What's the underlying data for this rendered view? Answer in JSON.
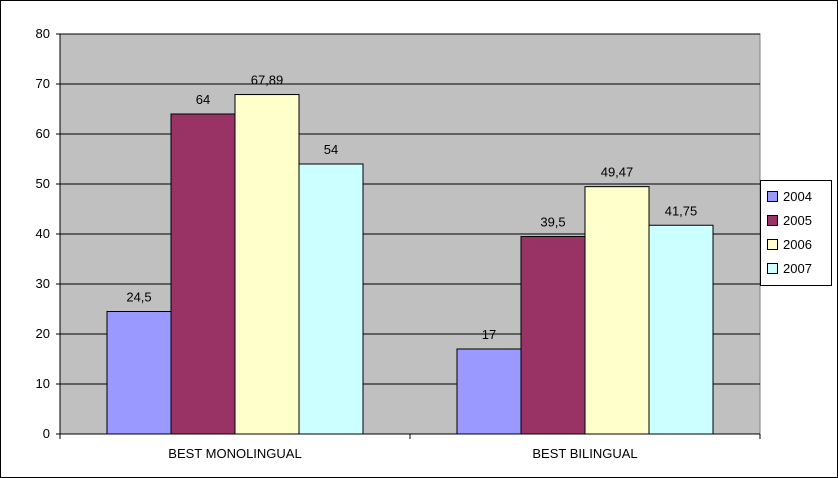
{
  "chart_data": {
    "type": "bar",
    "title": "",
    "xlabel": "",
    "ylabel": "",
    "categories": [
      "BEST MONOLINGUAL",
      "BEST BILINGUAL"
    ],
    "ylim": [
      0,
      80
    ],
    "yticks": [
      0,
      10,
      20,
      30,
      40,
      50,
      60,
      70,
      80
    ],
    "grid": true,
    "legend_position": "right",
    "series": [
      {
        "name": "2004",
        "color": "#9999FF",
        "values": [
          24.5,
          17
        ],
        "labels": [
          "24,5",
          "17"
        ]
      },
      {
        "name": "2005",
        "color": "#993366",
        "values": [
          64,
          39.5
        ],
        "labels": [
          "64",
          "39,5"
        ]
      },
      {
        "name": "2006",
        "color": "#FFFFCC",
        "values": [
          67.89,
          49.47
        ],
        "labels": [
          "67,89",
          "49,47"
        ]
      },
      {
        "name": "2007",
        "color": "#CCFFFF",
        "values": [
          54,
          41.75
        ],
        "labels": [
          "54",
          "41,75"
        ]
      }
    ],
    "plot_background": "#C0C0C0"
  }
}
